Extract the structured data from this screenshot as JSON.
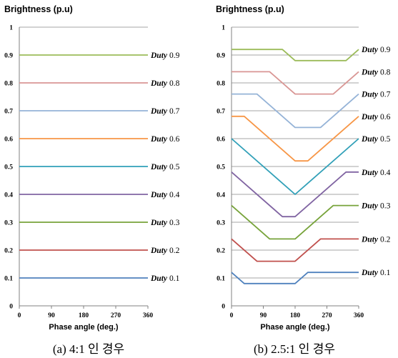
{
  "chart_data": [
    {
      "type": "line",
      "caption": "(a) 4:1 인 경우",
      "ylabel": "Brightness (p.u)",
      "xlabel": "Phase angle (deg.)",
      "xlim": [
        0,
        360
      ],
      "ylim": [
        0,
        1
      ],
      "xticks": [
        0,
        90,
        180,
        270,
        360
      ],
      "yticks": [
        0,
        0.1,
        0.2,
        0.3,
        0.4,
        0.5,
        0.6,
        0.7,
        0.8,
        0.9,
        1
      ],
      "ytick_labels": [
        "0",
        "0.1",
        "0.2",
        "0.3",
        "0.4",
        "0.5",
        "0.6",
        "0.7",
        "0.8",
        "0.9",
        "1"
      ],
      "grid": true,
      "series": [
        {
          "name": "Duty 0.9",
          "label_italic": "Duty",
          "label_num": "0.9",
          "color": "#9bbb59",
          "x": [
            0,
            360
          ],
          "y": [
            0.9,
            0.9
          ]
        },
        {
          "name": "Duty 0.8",
          "label_italic": "Duty",
          "label_num": "0.8",
          "color": "#d99694",
          "x": [
            0,
            360
          ],
          "y": [
            0.8,
            0.8
          ]
        },
        {
          "name": "Duty 0.7",
          "label_italic": "Duty",
          "label_num": "0.7",
          "color": "#95b3d7",
          "x": [
            0,
            360
          ],
          "y": [
            0.7,
            0.7
          ]
        },
        {
          "name": "Duty 0.6",
          "label_italic": "Duty",
          "label_num": "0.6",
          "color": "#f79646",
          "x": [
            0,
            360
          ],
          "y": [
            0.6,
            0.6
          ]
        },
        {
          "name": "Duty 0.5",
          "label_italic": "Duty",
          "label_num": "0.5",
          "color": "#31a0b8",
          "x": [
            0,
            360
          ],
          "y": [
            0.5,
            0.5
          ]
        },
        {
          "name": "Duty 0.4",
          "label_italic": "Duty",
          "label_num": "0.4",
          "color": "#8064a2",
          "x": [
            0,
            360
          ],
          "y": [
            0.4,
            0.4
          ]
        },
        {
          "name": "Duty 0.3",
          "label_italic": "Duty",
          "label_num": "0.3",
          "color": "#77a33a",
          "x": [
            0,
            360
          ],
          "y": [
            0.3,
            0.3
          ]
        },
        {
          "name": "Duty 0.2",
          "label_italic": "Duty",
          "label_num": "0.2",
          "color": "#c0504d",
          "x": [
            0,
            360
          ],
          "y": [
            0.2,
            0.2
          ]
        },
        {
          "name": "Duty 0.1",
          "label_italic": "Duty",
          "label_num": "0.1",
          "color": "#4f81bd",
          "x": [
            0,
            360
          ],
          "y": [
            0.1,
            0.1
          ]
        }
      ]
    },
    {
      "type": "line",
      "caption": "(b) 2.5:1 인 경우",
      "ylabel": "Brightness (p.u)",
      "xlabel": "Phase angle (deg.)",
      "xlim": [
        0,
        360
      ],
      "ylim": [
        0,
        1
      ],
      "xticks": [
        0,
        90,
        180,
        270,
        360
      ],
      "yticks": [
        0,
        0.1,
        0.2,
        0.3,
        0.4,
        0.5,
        0.6,
        0.7,
        0.8,
        0.9,
        1
      ],
      "ytick_labels": [
        "0",
        "0.1",
        "0.2",
        "0.3",
        "0.4",
        "0.5",
        "0.6",
        "0.7",
        "0.8",
        "0.9",
        "1"
      ],
      "grid": true,
      "series": [
        {
          "name": "Duty 0.9",
          "label_italic": "Duty",
          "label_num": "0.9",
          "color": "#9bbb59",
          "x": [
            0,
            144,
            180,
            324,
            360
          ],
          "y": [
            0.92,
            0.92,
            0.88,
            0.88,
            0.92
          ]
        },
        {
          "name": "Duty 0.8",
          "label_italic": "Duty",
          "label_num": "0.8",
          "color": "#d99694",
          "x": [
            0,
            108,
            180,
            288,
            360
          ],
          "y": [
            0.84,
            0.84,
            0.76,
            0.76,
            0.84
          ]
        },
        {
          "name": "Duty 0.7",
          "label_italic": "Duty",
          "label_num": "0.7",
          "color": "#95b3d7",
          "x": [
            0,
            72,
            180,
            252,
            360
          ],
          "y": [
            0.76,
            0.76,
            0.64,
            0.64,
            0.76
          ]
        },
        {
          "name": "Duty 0.6",
          "label_italic": "Duty",
          "label_num": "0.6",
          "color": "#f79646",
          "x": [
            0,
            36,
            180,
            216,
            360
          ],
          "y": [
            0.68,
            0.68,
            0.52,
            0.52,
            0.68
          ]
        },
        {
          "name": "Duty 0.5",
          "label_italic": "Duty",
          "label_num": "0.5",
          "color": "#31a0b8",
          "x": [
            0,
            180,
            360
          ],
          "y": [
            0.6,
            0.4,
            0.6
          ]
        },
        {
          "name": "Duty 0.4",
          "label_italic": "Duty",
          "label_num": "0.4",
          "color": "#8064a2",
          "x": [
            0,
            144,
            180,
            324,
            360
          ],
          "y": [
            0.48,
            0.32,
            0.32,
            0.48,
            0.48
          ]
        },
        {
          "name": "Duty 0.3",
          "label_italic": "Duty",
          "label_num": "0.3",
          "color": "#77a33a",
          "x": [
            0,
            108,
            180,
            288,
            360
          ],
          "y": [
            0.36,
            0.24,
            0.24,
            0.36,
            0.36
          ]
        },
        {
          "name": "Duty 0.2",
          "label_italic": "Duty",
          "label_num": "0.2",
          "color": "#c0504d",
          "x": [
            0,
            72,
            180,
            252,
            360
          ],
          "y": [
            0.24,
            0.16,
            0.16,
            0.24,
            0.24
          ]
        },
        {
          "name": "Duty 0.1",
          "label_italic": "Duty",
          "label_num": "0.1",
          "color": "#4f81bd",
          "x": [
            0,
            36,
            180,
            216,
            360
          ],
          "y": [
            0.12,
            0.08,
            0.08,
            0.12,
            0.12
          ]
        }
      ]
    }
  ]
}
